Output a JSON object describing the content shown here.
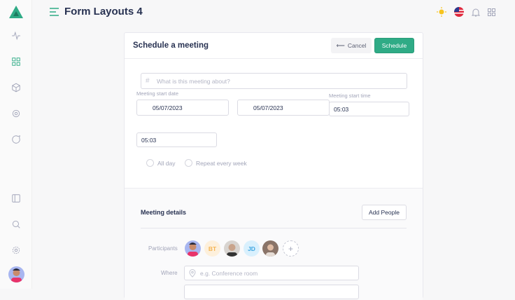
{
  "header": {
    "title": "Form Layouts 4"
  },
  "card": {
    "title": "Schedule a meeting",
    "cancel_label": "Cancel",
    "schedule_label": "Schedule",
    "topic_placeholder": "What is this meeting about?",
    "start_date_label": "Meeting start date",
    "start_date": "05/07/2023",
    "end_date": "05/07/2023",
    "start_time_label": "Meeting start time",
    "start_time": "05:03",
    "end_time": "05:03",
    "all_day_label": "All day",
    "repeat_label": "Repeat every week"
  },
  "details": {
    "title": "Meeting details",
    "add_people_label": "Add People",
    "participants_label": "Participants",
    "participants": [
      {
        "initials": ""
      },
      {
        "initials": "BT"
      },
      {
        "initials": ""
      },
      {
        "initials": "JD"
      },
      {
        "initials": ""
      }
    ],
    "where_label": "Where",
    "where_placeholder": "e.g. Conference room"
  },
  "colors": {
    "accent": "#2fab86",
    "bt_bg": "#fdf0dc",
    "bt_fg": "#f5b452",
    "jd_bg": "#d9f0fd",
    "jd_fg": "#3fa6e2"
  }
}
